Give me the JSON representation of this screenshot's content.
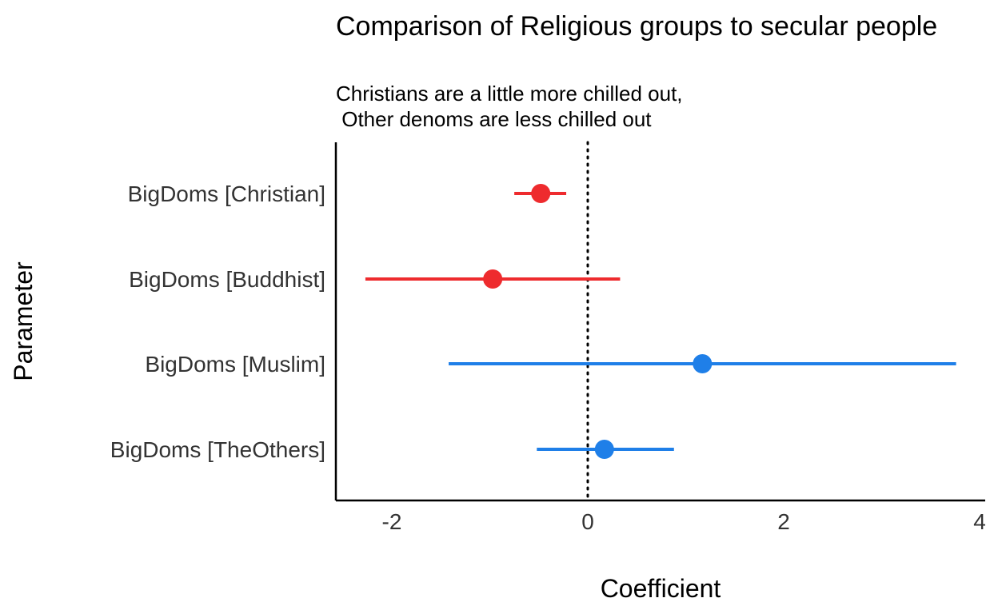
{
  "chart_data": {
    "type": "scatter",
    "title": "Comparison of Religious groups to secular people",
    "subtitle_lines": [
      "Christians are a little more chilled out,",
      " Other denoms are less chilled out"
    ],
    "xlabel": "Coefficient",
    "ylabel": "Parameter",
    "xlim": [
      -2.58,
      4.05
    ],
    "xticks": [
      -2,
      0,
      2,
      4
    ],
    "reference_line": 0,
    "grid": false,
    "points": [
      {
        "label": "BigDoms [Christian]",
        "estimate": -0.48,
        "ci_low": -0.75,
        "ci_high": -0.22,
        "color": "#EE2B2E"
      },
      {
        "label": "BigDoms [Buddhist]",
        "estimate": -0.97,
        "ci_low": -2.27,
        "ci_high": 0.33,
        "color": "#EE2B2E"
      },
      {
        "label": "BigDoms [Muslim]",
        "estimate": 1.17,
        "ci_low": -1.42,
        "ci_high": 3.76,
        "color": "#1F7FE8"
      },
      {
        "label": "BigDoms [TheOthers]",
        "estimate": 0.17,
        "ci_low": -0.52,
        "ci_high": 0.88,
        "color": "#1F7FE8"
      }
    ]
  }
}
